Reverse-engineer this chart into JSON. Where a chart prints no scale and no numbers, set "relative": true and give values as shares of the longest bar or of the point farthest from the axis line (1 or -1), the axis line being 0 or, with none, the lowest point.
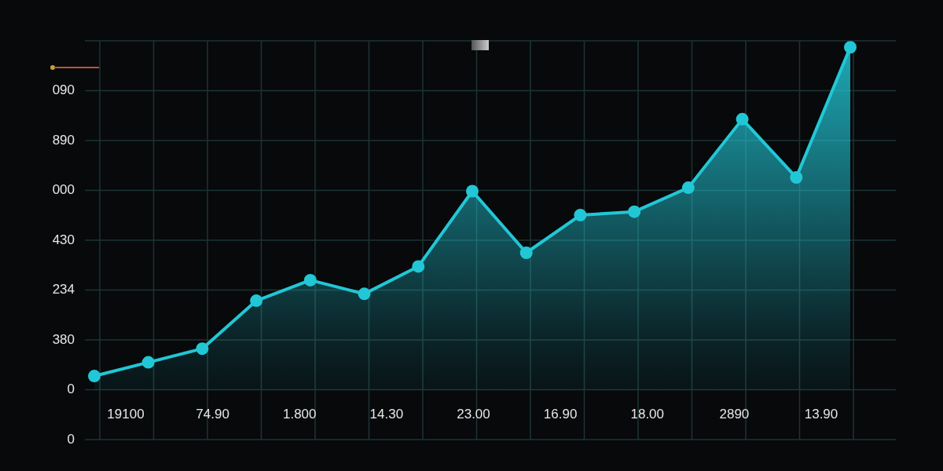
{
  "chart_data": {
    "type": "area",
    "relative": true,
    "categories": [
      null,
      null,
      null,
      null,
      null,
      null,
      null,
      null,
      null,
      null,
      null,
      null,
      null,
      null,
      null
    ],
    "values": [
      0.04,
      0.08,
      0.12,
      0.26,
      0.32,
      0.28,
      0.36,
      0.58,
      0.4,
      0.51,
      0.52,
      0.59,
      0.79,
      0.62,
      1
    ],
    "color": "#22c7d6",
    "annotations": [
      "090",
      "890",
      "000",
      "430",
      "234",
      "380",
      "0",
      "0",
      "19100",
      "74.90",
      "1.800",
      "14.30",
      "23.00",
      "16.90",
      "18.00",
      "2890",
      "13.90"
    ],
    "grid": true,
    "marker": "circle"
  }
}
